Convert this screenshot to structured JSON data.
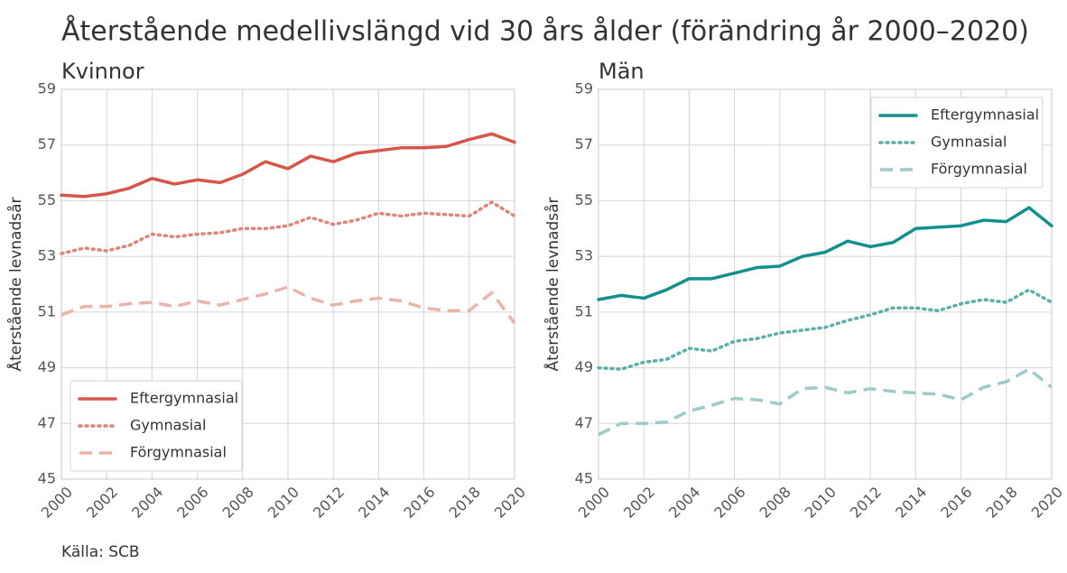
{
  "title": "Återstående medellivslängd vid 30 års ålder (förändring år 2000–2020)",
  "source": "Källa: SCB",
  "chart_data": [
    {
      "type": "line",
      "title": "Kvinnor",
      "ylabel": "Återstående levnadsår",
      "x": [
        2000,
        2001,
        2002,
        2003,
        2004,
        2005,
        2006,
        2007,
        2008,
        2009,
        2010,
        2011,
        2012,
        2013,
        2014,
        2015,
        2016,
        2017,
        2018,
        2019,
        2020
      ],
      "xlim": [
        2000,
        2020
      ],
      "xticks": [
        2000,
        2002,
        2004,
        2006,
        2008,
        2010,
        2012,
        2014,
        2016,
        2018,
        2020
      ],
      "ylim": [
        45,
        59
      ],
      "yticks": [
        45,
        47,
        49,
        51,
        53,
        55,
        57,
        59
      ],
      "grid": true,
      "legend": "lower left",
      "series": [
        {
          "name": "Eftergymnasial",
          "color": "#d6574a",
          "dash": "solid",
          "values": [
            55.2,
            55.15,
            55.25,
            55.45,
            55.8,
            55.6,
            55.75,
            55.65,
            55.95,
            56.4,
            56.15,
            56.6,
            56.4,
            56.7,
            56.8,
            56.9,
            56.9,
            56.95,
            57.2,
            57.4,
            57.1
          ]
        },
        {
          "name": "Gymnasial",
          "color": "#e08378",
          "dash": "dotted",
          "values": [
            53.1,
            53.3,
            53.2,
            53.4,
            53.8,
            53.7,
            53.8,
            53.85,
            54.0,
            54.0,
            54.1,
            54.4,
            54.15,
            54.3,
            54.55,
            54.45,
            54.55,
            54.5,
            54.45,
            54.95,
            54.45
          ]
        },
        {
          "name": "Förgymnasial",
          "color": "#ebb4a9",
          "dash": "dashed",
          "values": [
            50.9,
            51.2,
            51.2,
            51.3,
            51.35,
            51.2,
            51.4,
            51.25,
            51.45,
            51.65,
            51.9,
            51.5,
            51.25,
            51.4,
            51.5,
            51.4,
            51.15,
            51.05,
            51.05,
            51.7,
            50.6
          ]
        }
      ]
    },
    {
      "type": "line",
      "title": "Män",
      "ylabel": "Återstående levnadsår",
      "x": [
        2000,
        2001,
        2002,
        2003,
        2004,
        2005,
        2006,
        2007,
        2008,
        2009,
        2010,
        2011,
        2012,
        2013,
        2014,
        2015,
        2016,
        2017,
        2018,
        2019,
        2020
      ],
      "xlim": [
        2000,
        2020
      ],
      "xticks": [
        2000,
        2002,
        2004,
        2006,
        2008,
        2010,
        2012,
        2014,
        2016,
        2018,
        2020
      ],
      "ylim": [
        45,
        59
      ],
      "yticks": [
        45,
        47,
        49,
        51,
        53,
        55,
        57,
        59
      ],
      "grid": true,
      "legend": "upper right",
      "series": [
        {
          "name": "Eftergymnasial",
          "color": "#13908e",
          "dash": "solid",
          "values": [
            51.45,
            51.6,
            51.5,
            51.8,
            52.2,
            52.2,
            52.4,
            52.6,
            52.65,
            53.0,
            53.15,
            53.55,
            53.35,
            53.5,
            54.0,
            54.05,
            54.1,
            54.3,
            54.25,
            54.75,
            54.1
          ]
        },
        {
          "name": "Gymnasial",
          "color": "#5aafac",
          "dash": "dotted",
          "values": [
            49.0,
            48.95,
            49.2,
            49.3,
            49.7,
            49.6,
            49.95,
            50.05,
            50.25,
            50.35,
            50.45,
            50.7,
            50.9,
            51.15,
            51.15,
            51.05,
            51.3,
            51.45,
            51.35,
            51.8,
            51.35
          ]
        },
        {
          "name": "Förgymnasial",
          "color": "#9dcacb",
          "dash": "dashed",
          "values": [
            46.6,
            47.0,
            47.0,
            47.05,
            47.45,
            47.65,
            47.9,
            47.85,
            47.7,
            48.25,
            48.3,
            48.1,
            48.25,
            48.15,
            48.1,
            48.05,
            47.85,
            48.3,
            48.5,
            48.95,
            48.3
          ]
        }
      ]
    }
  ]
}
